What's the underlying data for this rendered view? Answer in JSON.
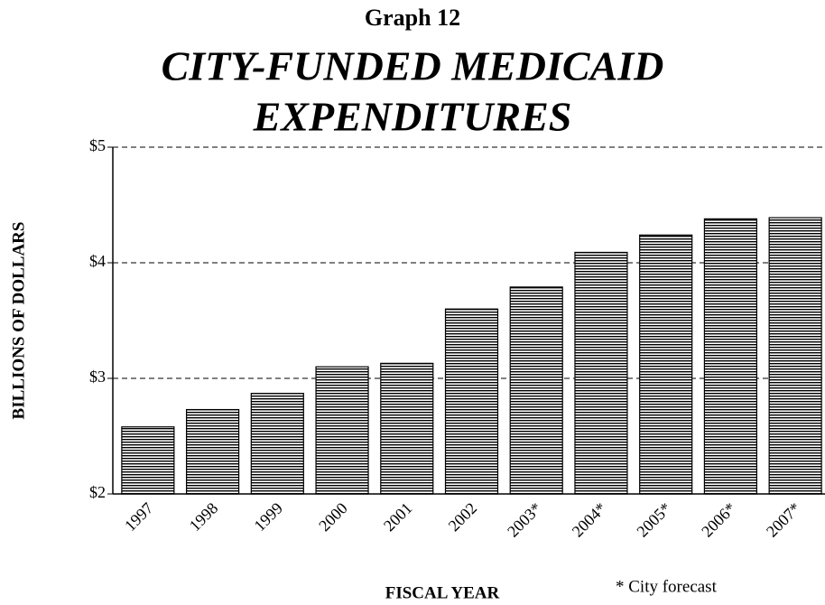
{
  "chart_data": {
    "type": "bar",
    "supertitle": "Graph 12",
    "title": [
      "CITY-FUNDED MEDICAID",
      "EXPENDITURES"
    ],
    "xlabel": "FISCAL YEAR",
    "ylabel": "BILLIONS OF DOLLARS",
    "note": "* City forecast",
    "categories": [
      "1997",
      "1998",
      "1999",
      "2000",
      "2001",
      "2002",
      "2003*",
      "2004*",
      "2005*",
      "2006*",
      "2007*"
    ],
    "values": [
      2.58,
      2.73,
      2.87,
      3.1,
      3.13,
      3.6,
      3.79,
      4.09,
      4.24,
      4.38,
      4.39
    ],
    "color": "#000000",
    "ylim": [
      2,
      5
    ],
    "yticks": [
      {
        "value": 2,
        "label": "$2"
      },
      {
        "value": 3,
        "label": "$3"
      },
      {
        "value": 4,
        "label": "$4"
      },
      {
        "value": 5,
        "label": "$5"
      }
    ],
    "grid": true
  }
}
